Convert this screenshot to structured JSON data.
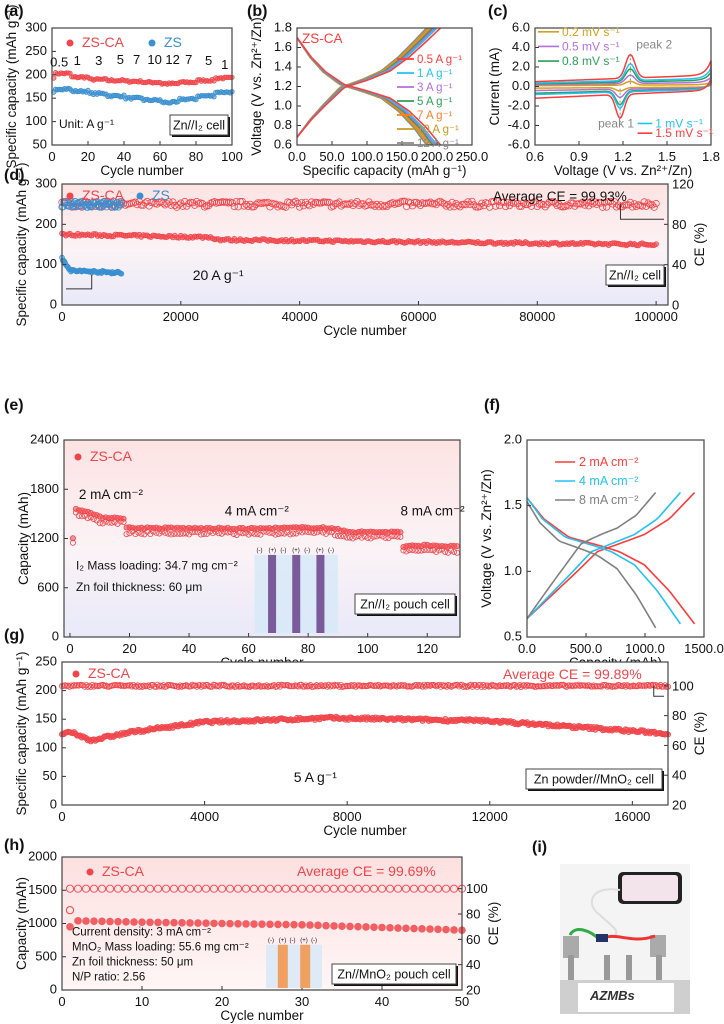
{
  "panels": [
    "(a)",
    "(b)",
    "(c)",
    "(d)",
    "(e)",
    "(f)",
    "(g)",
    "(h)",
    "(i)"
  ],
  "colors": {
    "zsca": "#f0454a",
    "zs": "#3a8fd0"
  },
  "chart_data": [
    {
      "panel": "a",
      "type": "scatter",
      "xlabel": "Cycle number",
      "ylabel": "Specific capacity (mAh g⁻¹)",
      "xlim": [
        0,
        100
      ],
      "ylim": [
        50,
        300
      ],
      "xticks": [
        0,
        20,
        40,
        60,
        80,
        100
      ],
      "yticks": [
        50,
        100,
        150,
        200,
        250,
        300
      ],
      "legend_position": "top",
      "rate_labels": [
        "0.5",
        "1",
        "3",
        "5",
        "7",
        "10",
        "12",
        "7",
        "5",
        "1"
      ],
      "cycles_per_rate": 10,
      "series": [
        {
          "name": "ZS-CA",
          "color": "#f0454a",
          "values": [
            203,
            195,
            190,
            188,
            186,
            184,
            181,
            184,
            188,
            193
          ]
        },
        {
          "name": "ZS",
          "color": "#3a8fd0",
          "values": [
            170,
            165,
            160,
            155,
            150,
            146,
            141,
            148,
            155,
            163
          ]
        }
      ],
      "annotations": [
        "Unit: A g⁻¹",
        "Zn//I₂ cell"
      ]
    },
    {
      "panel": "b",
      "type": "line",
      "xlabel": "Specific capacity (mAh g⁻¹)",
      "ylabel": "Voltage (V vs. Zn²⁺/Zn)",
      "xlim": [
        0,
        250
      ],
      "ylim": [
        0.6,
        1.8
      ],
      "xticks": [
        0,
        50,
        100,
        150,
        200,
        250
      ],
      "yticks": [
        0.6,
        0.8,
        1.0,
        1.2,
        1.4,
        1.6,
        1.8
      ],
      "title_text": "ZS-CA",
      "legend_position": "right",
      "series": [
        {
          "name": "0.5 A g⁻¹",
          "color": "#ff3b3b",
          "capacity": 205
        },
        {
          "name": "1 A g⁻¹",
          "color": "#22c3f2",
          "capacity": 200
        },
        {
          "name": "3 A g⁻¹",
          "color": "#b46ee0",
          "capacity": 197
        },
        {
          "name": "5 A g⁻¹",
          "color": "#2aa05a",
          "capacity": 194
        },
        {
          "name": "7 A g⁻¹",
          "color": "#ff7f27",
          "capacity": 191
        },
        {
          "name": "10 A g⁻¹",
          "color": "#c89a1c",
          "capacity": 188
        },
        {
          "name": "12 A g⁻¹",
          "color": "#8a8a8a",
          "capacity": 185
        }
      ]
    },
    {
      "panel": "c",
      "type": "line",
      "xlabel": "Voltage (V vs. Zn²⁺/Zn)",
      "ylabel": "Current (mA)",
      "xlim": [
        0.6,
        1.8
      ],
      "ylim": [
        -6,
        6
      ],
      "xticks": [
        0.6,
        0.9,
        1.2,
        1.5,
        1.8
      ],
      "yticks": [
        -6,
        -4,
        -2,
        0,
        2,
        4,
        6
      ],
      "tick_format": "0.0",
      "annotations": [
        "peak 1",
        "peak 2"
      ],
      "peak_potentials": {
        "oxidation": 1.25,
        "reduction": 1.18
      },
      "series": [
        {
          "name": "0.2 mV s⁻¹",
          "color": "#d4a017",
          "peak_ox": 0.5,
          "peak_red": -0.5
        },
        {
          "name": "0.5 mV s⁻¹",
          "color": "#b46ee0",
          "peak_ox": 1.1,
          "peak_red": -1.2
        },
        {
          "name": "0.8 mV s⁻¹",
          "color": "#2aa05a",
          "peak_ox": 1.7,
          "peak_red": -2.0
        },
        {
          "name": "1 mV s⁻¹",
          "color": "#22c3f2",
          "peak_ox": 2.2,
          "peak_red": -2.4
        },
        {
          "name": "1.5 mV s⁻¹",
          "color": "#ff3b3b",
          "peak_ox": 3.1,
          "peak_red": -3.5
        }
      ]
    },
    {
      "panel": "d",
      "type": "scatter",
      "xlabel": "Cycle number",
      "ylabel": "Specific capacity (mAh g⁻¹)",
      "y2label": "CE (%)",
      "xlim": [
        0,
        102000
      ],
      "ylim": [
        0,
        300
      ],
      "y2lim": [
        0,
        120
      ],
      "xticks": [
        0,
        20000,
        40000,
        60000,
        80000,
        100000
      ],
      "yticks": [
        0,
        100,
        200,
        300
      ],
      "y2ticks": [
        0,
        40,
        80,
        120
      ],
      "annotations": [
        "Average CE = 99.93%",
        "20 A g⁻¹",
        "Zn//I₂ cell"
      ],
      "series": [
        {
          "name": "ZS-CA",
          "color": "#f0454a",
          "capacity": [
            [
              0,
              175
            ],
            [
              25000,
              168
            ],
            [
              26500,
              162
            ],
            [
              50000,
              158
            ],
            [
              80000,
              153
            ],
            [
              100000,
              150
            ]
          ],
          "ce": 99.93,
          "last_cycle": 100000
        },
        {
          "name": "ZS",
          "color": "#3a8fd0",
          "capacity": [
            [
              0,
              115
            ],
            [
              1500,
              85
            ],
            [
              10000,
              80
            ]
          ],
          "ce": 100,
          "last_cycle": 10000
        }
      ]
    },
    {
      "panel": "e",
      "type": "scatter",
      "xlabel": "Cycle number",
      "ylabel": "Capacity (mAh)",
      "xlim": [
        -2,
        131
      ],
      "ylim": [
        0,
        2400
      ],
      "xticks": [
        0,
        20,
        40,
        60,
        80,
        100,
        120
      ],
      "yticks": [
        0,
        600,
        1200,
        1800,
        2400
      ],
      "annotations": [
        "2 mA cm⁻²",
        "4 mA cm⁻²",
        "8 mA cm⁻²",
        "I₂ Mass loading: 34.7 mg cm⁻²",
        "Zn foil thickness: 60 μm",
        "Zn//I₂ pouch cell"
      ],
      "inset_labels": [
        "(-)",
        "(+)",
        "(-)",
        "(+)",
        "(-)",
        "(+)",
        "(-)"
      ],
      "series": [
        {
          "name": "ZS-CA",
          "color": "#f0454a",
          "capacity": [
            [
              1,
              1200
            ],
            [
              2,
              1560
            ],
            [
              5,
              1540
            ],
            [
              10,
              1460
            ],
            [
              18,
              1450
            ],
            [
              19,
              1330
            ],
            [
              60,
              1320
            ],
            [
              85,
              1335
            ],
            [
              95,
              1280
            ],
            [
              111,
              1280
            ],
            [
              112,
              1100
            ],
            [
              120,
              1120
            ],
            [
              130,
              1100
            ]
          ]
        }
      ]
    },
    {
      "panel": "f",
      "type": "line",
      "xlabel": "Capacity (mAh)",
      "ylabel": "Voltage (V vs. Zn²⁺/Zn)",
      "xlim": [
        0,
        1500
      ],
      "ylim": [
        0.5,
        2.0
      ],
      "xticks": [
        0,
        500,
        1000,
        1500
      ],
      "yticks": [
        0.5,
        1.0,
        1.5,
        2.0
      ],
      "tick_format": "0.0",
      "series": [
        {
          "name": "2 mA cm⁻²",
          "color": "#ff3b3b",
          "capacity": 1420
        },
        {
          "name": "4 mA cm⁻²",
          "color": "#22c3f2",
          "capacity": 1300
        },
        {
          "name": "8 mA cm⁻²",
          "color": "#808080",
          "capacity": 1090
        }
      ]
    },
    {
      "panel": "g",
      "type": "scatter",
      "xlabel": "Cycle number",
      "ylabel": "Specific capacity (mAh g⁻¹)",
      "y2label": "CE (%)",
      "xlim": [
        0,
        17000
      ],
      "ylim": [
        0,
        250
      ],
      "y2lim": [
        20,
        116
      ],
      "xticks": [
        0,
        4000,
        8000,
        12000,
        16000
      ],
      "yticks": [
        0,
        50,
        100,
        150,
        200,
        250
      ],
      "y2ticks": [
        20,
        40,
        60,
        80,
        100
      ],
      "annotations": [
        "Average CE = 99.89%",
        "5 A g⁻¹",
        "Zn powder//MnO₂ cell"
      ],
      "series": [
        {
          "name": "ZS-CA",
          "color": "#f0454a",
          "capacity": [
            [
              0,
              125
            ],
            [
              300,
              126
            ],
            [
              800,
              113
            ],
            [
              2000,
              128
            ],
            [
              4000,
              145
            ],
            [
              7500,
              152
            ],
            [
              12000,
              147
            ],
            [
              17000,
              125
            ]
          ],
          "ce": 99.89
        }
      ]
    },
    {
      "panel": "h",
      "type": "scatter",
      "xlabel": "Cycle number",
      "ylabel": "Capacity (mAh)",
      "y2label": "CE (%)",
      "xlim": [
        0,
        50
      ],
      "ylim": [
        0,
        2000
      ],
      "y2lim": [
        20,
        125
      ],
      "xticks": [
        0,
        10,
        20,
        30,
        40,
        50
      ],
      "yticks": [
        0,
        500,
        1000,
        1500,
        2000
      ],
      "y2ticks": [
        20,
        40,
        60,
        80,
        100
      ],
      "annotations": [
        "Average CE = 99.69%",
        "Current density: 3 mA cm⁻²",
        "MnO₂ Mass loading: 55.6 mg cm⁻²",
        "Zn foil thickness: 50 μm",
        "N/P ratio: 2.56",
        "Zn//MnO₂ pouch cell"
      ],
      "inset_labels": [
        "(-)",
        "(+)",
        "(-)",
        "(+)",
        "(-)"
      ],
      "series": [
        {
          "name": "ZS-CA",
          "color": "#f0454a",
          "capacity": [
            [
              1,
              950
            ],
            [
              2,
              1040
            ],
            [
              10,
              1020
            ],
            [
              30,
              980
            ],
            [
              50,
              900
            ]
          ],
          "ce": 99.69
        }
      ]
    }
  ],
  "photo_i": {
    "label": "AZMBs"
  }
}
